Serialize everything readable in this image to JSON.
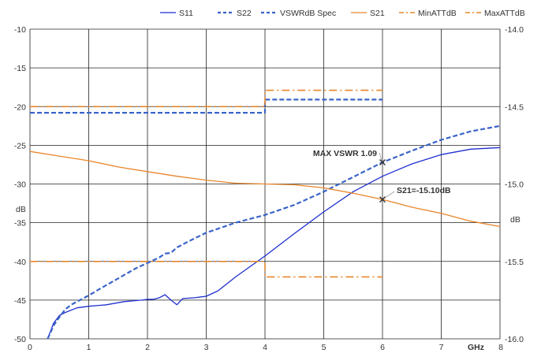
{
  "chart_data": {
    "type": "line",
    "xlabel": "GHz",
    "ylabel": "dB",
    "y2label": "dB",
    "xlim": [
      0,
      8
    ],
    "ylim": [
      -50,
      -10
    ],
    "y2lim": [
      -16.0,
      -14.0
    ],
    "xticks": [
      0,
      1,
      2,
      3,
      4,
      5,
      6,
      7,
      8
    ],
    "yticks": [
      -10,
      -15,
      -20,
      -25,
      -30,
      -35,
      -40,
      -45,
      -50
    ],
    "y2ticks": [
      "-14.0",
      "-14.5",
      "-15.0",
      "-15.5",
      "-16.0"
    ],
    "grid": true,
    "legend_position": "top",
    "colors": {
      "blue": "#1f2fcf",
      "blue_dash": "#3a64c8",
      "orange": "#e8862a"
    },
    "series": [
      {
        "name": "S11",
        "axis": "left",
        "style": "solid",
        "color": "#1f2fcf",
        "x": [
          0.3,
          0.35,
          0.4,
          0.5,
          0.6,
          0.8,
          1.0,
          1.3,
          1.6,
          1.9,
          2.0,
          2.1,
          2.2,
          2.3,
          2.4,
          2.5,
          2.55,
          2.6,
          2.8,
          3.0,
          3.2,
          3.5,
          4.0,
          4.5,
          5.0,
          5.5,
          6.0,
          6.5,
          7.0,
          7.5,
          8.0
        ],
        "y": [
          -50,
          -49,
          -48,
          -47,
          -46.6,
          -46,
          -45.8,
          -45.6,
          -45.2,
          -45.0,
          -44.9,
          -44.9,
          -44.7,
          -44.3,
          -45.0,
          -45.6,
          -45.2,
          -44.8,
          -44.7,
          -44.5,
          -43.8,
          -42.0,
          -39.3,
          -36.4,
          -33.6,
          -31.0,
          -29.0,
          -27.4,
          -26.2,
          -25.5,
          -25.3
        ]
      },
      {
        "name": "S22",
        "axis": "left",
        "style": "dash",
        "color": "#3a64c8",
        "x": [
          0.3,
          0.35,
          0.4,
          0.5,
          0.6,
          0.7,
          0.8,
          1.0,
          1.2,
          1.5,
          1.8,
          2.0,
          2.2,
          2.3,
          2.4,
          2.5,
          2.7,
          3.0,
          3.5,
          4.0,
          4.5,
          5.0,
          5.5,
          6.0,
          6.5,
          7.0,
          7.5,
          8.0
        ],
        "y": [
          -50,
          -49.2,
          -48.3,
          -47.2,
          -46.2,
          -45.6,
          -45.2,
          -44.4,
          -43.5,
          -42.2,
          -40.9,
          -40.2,
          -39.5,
          -39.0,
          -38.9,
          -38.2,
          -37.4,
          -36.3,
          -35.0,
          -34.0,
          -32.7,
          -31.0,
          -29.1,
          -27.2,
          -25.7,
          -24.3,
          -23.2,
          -22.5
        ]
      },
      {
        "name": "VSWRdB Spec",
        "axis": "left",
        "style": "dash",
        "color": "#3a64c8",
        "x": [
          0,
          4.0,
          4.0,
          6.0
        ],
        "y": [
          -20.8,
          -20.8,
          -19.1,
          -19.1
        ]
      },
      {
        "name": "S21",
        "axis": "right",
        "style": "solid",
        "color": "#e8862a",
        "x": [
          0,
          0.5,
          1.0,
          1.5,
          2.0,
          2.5,
          3.0,
          3.5,
          4.0,
          4.5,
          5.0,
          5.5,
          6.0,
          6.5,
          7.0,
          7.5,
          8.0
        ],
        "y": [
          -14.79,
          -14.82,
          -14.85,
          -14.89,
          -14.92,
          -14.95,
          -14.975,
          -14.995,
          -15.0,
          -15.005,
          -15.025,
          -15.06,
          -15.1,
          -15.15,
          -15.19,
          -15.24,
          -15.275
        ]
      },
      {
        "name": "MinATTdB",
        "axis": "left",
        "style": "dashdot",
        "color": "#e8862a",
        "x": [
          0,
          4.0,
          4.0,
          6.0
        ],
        "y": [
          -40.0,
          -40.0,
          -42.0,
          -42.0
        ]
      },
      {
        "name": "MaxATTdB",
        "axis": "left",
        "style": "dashdot",
        "color": "#e8862a",
        "x": [
          0,
          4.0,
          4.0,
          6.0
        ],
        "y": [
          -20.0,
          -20.0,
          -17.9,
          -17.9
        ]
      }
    ],
    "annotations": [
      {
        "text": "MAX VSWR 1.09",
        "x": 6.0,
        "y": -27.2,
        "axis": "left"
      },
      {
        "text": "S21=-15.10dB",
        "x": 6.0,
        "y": -15.1,
        "axis": "right"
      }
    ]
  }
}
